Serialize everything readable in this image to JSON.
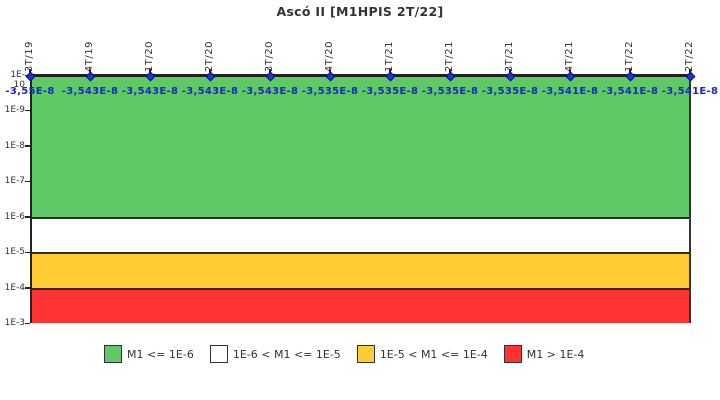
{
  "title": "Ascó II [M1HPIS 2T/22]",
  "colors": {
    "green": "#5fc966",
    "white": "#ffffff",
    "yellow": "#ffcc33",
    "red": "#ff3333",
    "axis": "#222222",
    "text": "#333333",
    "value_text": "#2222cc",
    "marker": "#2233cc"
  },
  "chart_data": {
    "type": "line",
    "title": "Ascó II [M1HPIS 2T/22]",
    "x_categories": [
      "3T/19",
      "4T/19",
      "1T/20",
      "2T/20",
      "3T/20",
      "4T/20",
      "1T/21",
      "2T/21",
      "3T/21",
      "4T/21",
      "1T/22",
      "2T/22"
    ],
    "series": [
      {
        "name": "M1",
        "values": [
          -3.55e-08,
          -3.543e-08,
          -3.543e-08,
          -3.543e-08,
          -3.543e-08,
          -3.535e-08,
          -3.535e-08,
          -3.535e-08,
          -3.535e-08,
          -3.541e-08,
          -3.541e-08,
          -3.541e-08
        ],
        "value_labels": [
          "-3,55E-8",
          "-3,543E-8",
          "-3,543E-8",
          "-3,543E-8",
          "-3,543E-8",
          "-3,535E-8",
          "-3,535E-8",
          "-3,535E-8",
          "-3,535E-8",
          "-3,541E-8",
          "-3,541E-8",
          "-3,541E-8"
        ]
      }
    ],
    "y_axis": {
      "scale": "log",
      "direction": "inverted",
      "ticks": [
        "1E-10",
        "1E-9",
        "1E-8",
        "1E-7",
        "1E-6",
        "1E-5",
        "1E-4",
        "1E-3"
      ],
      "top_exponent": -10,
      "bottom_exponent": -3
    },
    "bands": [
      {
        "from_exp": -10,
        "to_exp": -6,
        "color": "#5fc966",
        "meaning": "M1 <= 1E-6"
      },
      {
        "from_exp": -6,
        "to_exp": -5,
        "color": "#ffffff",
        "meaning": "1E-6 < M1 <= 1E-5"
      },
      {
        "from_exp": -5,
        "to_exp": -4,
        "color": "#ffcc33",
        "meaning": "1E-5 < M1 <= 1E-4"
      },
      {
        "from_exp": -4,
        "to_exp": -3,
        "color": "#ff3333",
        "meaning": "M1 > 1E-4"
      }
    ],
    "legend": [
      {
        "label": "M1 <= 1E-6",
        "color": "#5fc966"
      },
      {
        "label": "1E-6 < M1 <= 1E-5",
        "color": "#ffffff"
      },
      {
        "label": "1E-5 < M1 <= 1E-4",
        "color": "#ffcc33"
      },
      {
        "label": "M1 > 1E-4",
        "color": "#ff3333"
      }
    ],
    "grid": false,
    "legend_position": "bottom"
  }
}
